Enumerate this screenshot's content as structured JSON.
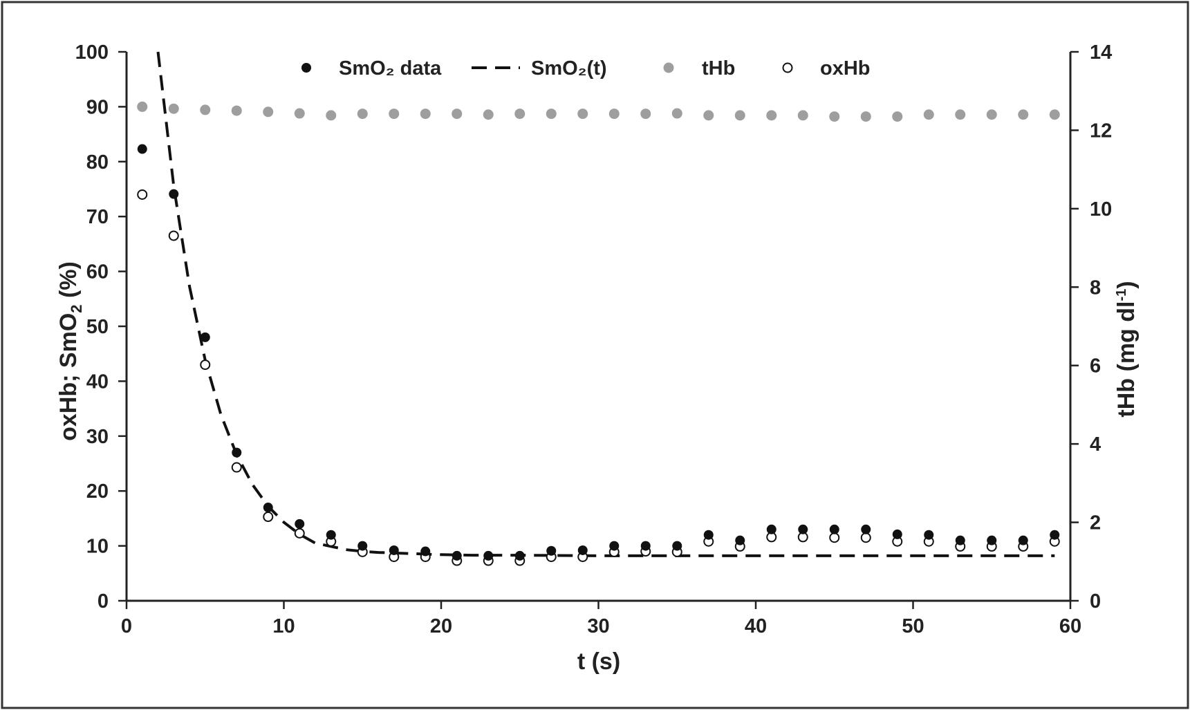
{
  "chart_data": {
    "type": "scatter",
    "x": [
      1,
      3,
      5,
      7,
      9,
      11,
      13,
      15,
      17,
      19,
      21,
      23,
      25,
      27,
      29,
      31,
      33,
      35,
      37,
      39,
      41,
      43,
      45,
      47,
      49,
      51,
      53,
      55,
      57,
      59
    ],
    "xlabel": "t (s)",
    "xlim": [
      0,
      60
    ],
    "xticks": [
      0,
      10,
      20,
      30,
      40,
      50,
      60
    ],
    "ylabel": "oxHb; SmO",
    "ylabel_sub": "2",
    "ylabel_suffix": " (%)",
    "ylim": [
      0,
      100
    ],
    "yticks": [
      0,
      10,
      20,
      30,
      40,
      50,
      60,
      70,
      80,
      90,
      100
    ],
    "y2label": "tHb (mg dl",
    "y2label_sup": "-1",
    "y2label_suffix": ")",
    "y2lim": [
      0,
      14
    ],
    "y2ticks": [
      0,
      2,
      4,
      6,
      8,
      10,
      12,
      14
    ],
    "legend_position": "top",
    "series": [
      {
        "name": "SmO₂ data",
        "marker": "filled-circle",
        "color": "#111111",
        "axis": "left",
        "values": [
          82.3,
          74.1,
          48,
          27,
          17,
          14,
          12,
          10,
          9.2,
          9,
          8.2,
          8.2,
          8.2,
          9.1,
          9.2,
          10,
          10,
          10,
          12,
          11,
          13,
          13,
          13,
          13,
          12.1,
          12,
          11,
          11,
          11,
          12
        ]
      },
      {
        "name": "SmO₂(t)",
        "line": "dashed",
        "color": "#111111",
        "axis": "left",
        "x": [
          2,
          3,
          4,
          5,
          6,
          7,
          8,
          9,
          10,
          11,
          12,
          13,
          14,
          15,
          16,
          17,
          18,
          19,
          20,
          22,
          25,
          30,
          40,
          50,
          59
        ],
        "values": [
          100,
          75.5,
          57.3,
          43.8,
          33.9,
          26.6,
          21.2,
          17.2,
          14.3,
          12.1,
          10.5,
          9.9,
          9.3,
          9.0,
          8.8,
          8.7,
          8.6,
          8.5,
          8.4,
          8.3,
          8.3,
          8.2,
          8.2,
          8.2,
          8.2
        ]
      },
      {
        "name": "tHb",
        "marker": "filled-circle",
        "color": "#9e9e9e",
        "axis": "right",
        "values": [
          12.6,
          12.55,
          12.52,
          12.5,
          12.47,
          12.43,
          12.38,
          12.42,
          12.42,
          12.42,
          12.42,
          12.4,
          12.42,
          12.42,
          12.42,
          12.42,
          12.42,
          12.43,
          12.38,
          12.38,
          12.38,
          12.38,
          12.35,
          12.35,
          12.35,
          12.4,
          12.4,
          12.4,
          12.4,
          12.4
        ]
      },
      {
        "name": "oxHb",
        "marker": "open-circle",
        "color": "#111111",
        "axis": "left",
        "values": [
          74,
          66.5,
          43,
          24.3,
          15.3,
          12.3,
          10.8,
          8.9,
          8,
          8,
          7.3,
          7.3,
          7.3,
          8,
          8,
          8.9,
          9,
          8.9,
          10.8,
          9.9,
          11.6,
          11.6,
          11.5,
          11.5,
          10.8,
          10.8,
          9.9,
          9.9,
          9.9,
          10.8
        ]
      }
    ]
  }
}
